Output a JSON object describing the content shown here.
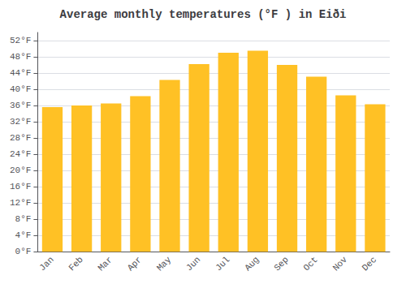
{
  "chart_data": {
    "type": "bar",
    "title": "Average monthly temperatures (°F ) in Eiði",
    "categories": [
      "Jan",
      "Feb",
      "Mar",
      "Apr",
      "May",
      "Jun",
      "Jul",
      "Aug",
      "Sep",
      "Oct",
      "Nov",
      "Dec"
    ],
    "values": [
      35.6,
      36.0,
      36.5,
      38.3,
      42.3,
      46.2,
      49.0,
      49.5,
      46.0,
      43.1,
      38.5,
      36.3
    ],
    "color": "#FFC125",
    "ylim": [
      0,
      54
    ],
    "yticks": [
      {
        "value": 0,
        "label": "0°F"
      },
      {
        "value": 4,
        "label": "4°F"
      },
      {
        "value": 8,
        "label": "8°F"
      },
      {
        "value": 12,
        "label": "12°F"
      },
      {
        "value": 16,
        "label": "16°F"
      },
      {
        "value": 20,
        "label": "20°F"
      },
      {
        "value": 24,
        "label": "24°F"
      },
      {
        "value": 28,
        "label": "28°F"
      },
      {
        "value": 32,
        "label": "32°F"
      },
      {
        "value": 36,
        "label": "36°F"
      },
      {
        "value": 40,
        "label": "40°F"
      },
      {
        "value": 44,
        "label": "44°F"
      },
      {
        "value": 48,
        "label": "48°F"
      },
      {
        "value": 52,
        "label": "52°F"
      }
    ],
    "grid": true
  }
}
